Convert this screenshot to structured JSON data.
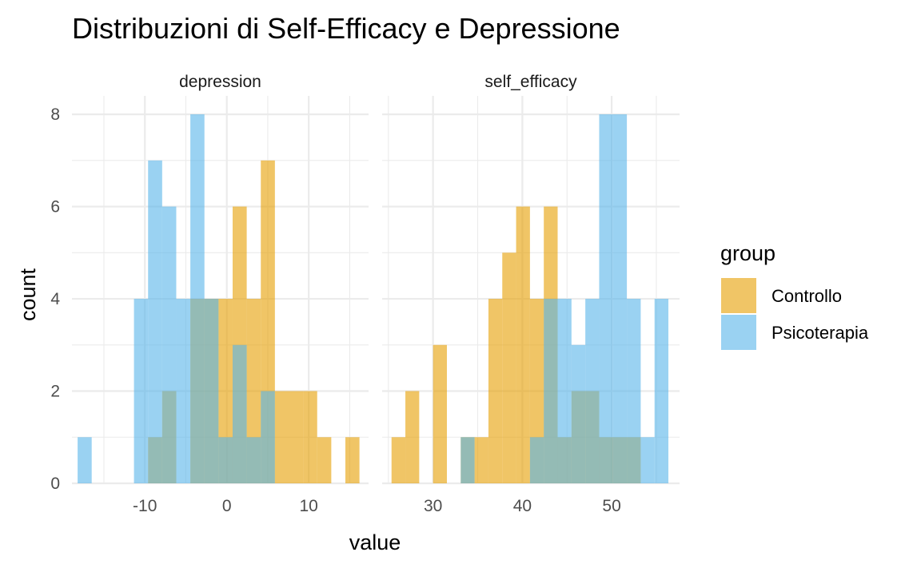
{
  "chart_data": {
    "type": "bar",
    "subtype": "histogram",
    "title": "Distribuzioni di Self-Efficacy e Depressione",
    "xlabel": "value",
    "ylabel": "count",
    "ylim": [
      0,
      8.4
    ],
    "y_ticks": [
      "0",
      "2",
      "4",
      "6",
      "8"
    ],
    "legend": {
      "title": "group",
      "position": "right",
      "entries": [
        {
          "label": "Controllo",
          "color": "#E69F00"
        },
        {
          "label": "Psicoterapia",
          "color": "#56B4E9"
        }
      ]
    },
    "grid": true,
    "bar_opacity": 0.6,
    "facets": [
      {
        "label": "depression",
        "xlim": [
          -18.9,
          17.3
        ],
        "x_ticks": [
          "-10",
          "0",
          "10"
        ],
        "bin_width": 1.72,
        "series": [
          {
            "name": "Controllo",
            "bins": [
              {
                "x0": -9.61,
                "x1": -7.89,
                "count": 1
              },
              {
                "x0": -7.89,
                "x1": -6.17,
                "count": 2
              },
              {
                "x0": -4.45,
                "x1": -2.73,
                "count": 4
              },
              {
                "x0": -2.73,
                "x1": -1.01,
                "count": 4
              },
              {
                "x0": -1.01,
                "x1": 0.71,
                "count": 4
              },
              {
                "x0": 0.71,
                "x1": 2.43,
                "count": 6
              },
              {
                "x0": 2.43,
                "x1": 4.15,
                "count": 4
              },
              {
                "x0": 4.15,
                "x1": 5.87,
                "count": 7
              },
              {
                "x0": 5.87,
                "x1": 7.59,
                "count": 2
              },
              {
                "x0": 7.59,
                "x1": 9.31,
                "count": 2
              },
              {
                "x0": 9.31,
                "x1": 11.03,
                "count": 2
              },
              {
                "x0": 11.03,
                "x1": 12.75,
                "count": 1
              },
              {
                "x0": 14.47,
                "x1": 16.19,
                "count": 1
              }
            ]
          },
          {
            "name": "Psicoterapia",
            "bins": [
              {
                "x0": -18.21,
                "x1": -16.49,
                "count": 1
              },
              {
                "x0": -11.33,
                "x1": -9.61,
                "count": 4
              },
              {
                "x0": -9.61,
                "x1": -7.89,
                "count": 7
              },
              {
                "x0": -7.89,
                "x1": -6.17,
                "count": 6
              },
              {
                "x0": -6.17,
                "x1": -4.45,
                "count": 4
              },
              {
                "x0": -4.45,
                "x1": -2.73,
                "count": 8
              },
              {
                "x0": -2.73,
                "x1": -1.01,
                "count": 4
              },
              {
                "x0": -1.01,
                "x1": 0.71,
                "count": 1
              },
              {
                "x0": 0.71,
                "x1": 2.43,
                "count": 3
              },
              {
                "x0": 2.43,
                "x1": 4.15,
                "count": 1
              },
              {
                "x0": 4.15,
                "x1": 5.87,
                "count": 2
              }
            ]
          }
        ]
      },
      {
        "label": "self_efficacy",
        "xlim": [
          24.3,
          57.6
        ],
        "x_ticks": [
          "30",
          "40",
          "50"
        ],
        "bin_width": 1.55,
        "series": [
          {
            "name": "Controllo",
            "bins": [
              {
                "x0": 25.35,
                "x1": 26.9,
                "count": 1
              },
              {
                "x0": 26.9,
                "x1": 28.45,
                "count": 2
              },
              {
                "x0": 30.0,
                "x1": 31.55,
                "count": 3
              },
              {
                "x0": 33.1,
                "x1": 34.65,
                "count": 1
              },
              {
                "x0": 34.65,
                "x1": 36.2,
                "count": 1
              },
              {
                "x0": 36.2,
                "x1": 37.75,
                "count": 4
              },
              {
                "x0": 37.75,
                "x1": 39.3,
                "count": 5
              },
              {
                "x0": 39.3,
                "x1": 40.85,
                "count": 6
              },
              {
                "x0": 40.85,
                "x1": 42.4,
                "count": 4
              },
              {
                "x0": 42.4,
                "x1": 43.95,
                "count": 6
              },
              {
                "x0": 43.95,
                "x1": 45.5,
                "count": 1
              },
              {
                "x0": 45.5,
                "x1": 47.05,
                "count": 2
              },
              {
                "x0": 47.05,
                "x1": 48.6,
                "count": 2
              },
              {
                "x0": 48.6,
                "x1": 50.15,
                "count": 1
              },
              {
                "x0": 50.15,
                "x1": 51.7,
                "count": 1
              },
              {
                "x0": 51.7,
                "x1": 53.25,
                "count": 1
              }
            ]
          },
          {
            "name": "Psicoterapia",
            "bins": [
              {
                "x0": 33.1,
                "x1": 34.65,
                "count": 1
              },
              {
                "x0": 40.85,
                "x1": 42.4,
                "count": 1
              },
              {
                "x0": 42.4,
                "x1": 43.95,
                "count": 4
              },
              {
                "x0": 43.95,
                "x1": 45.5,
                "count": 4
              },
              {
                "x0": 45.5,
                "x1": 47.05,
                "count": 3
              },
              {
                "x0": 47.05,
                "x1": 48.6,
                "count": 4
              },
              {
                "x0": 48.6,
                "x1": 50.15,
                "count": 8
              },
              {
                "x0": 50.15,
                "x1": 51.7,
                "count": 8
              },
              {
                "x0": 51.7,
                "x1": 53.25,
                "count": 4
              },
              {
                "x0": 53.25,
                "x1": 54.8,
                "count": 1
              },
              {
                "x0": 54.8,
                "x1": 56.35,
                "count": 4
              }
            ]
          }
        ]
      }
    ]
  }
}
